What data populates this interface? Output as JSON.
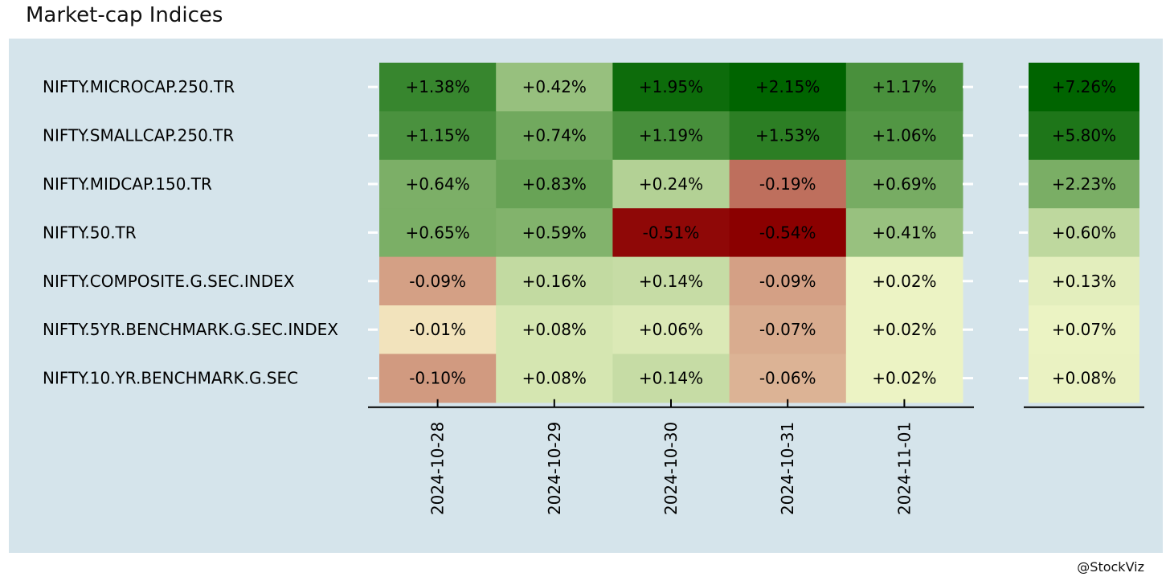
{
  "title": "Market-cap Indices",
  "caption": "@StockViz",
  "chart_data": {
    "type": "heatmap",
    "title": "Market-cap Indices",
    "rows": [
      "NIFTY.MICROCAP.250.TR",
      "NIFTY.SMALLCAP.250.TR",
      "NIFTY.MIDCAP.150.TR",
      "NIFTY.50.TR",
      "NIFTY.COMPOSITE.G.SEC.INDEX",
      "NIFTY.5YR.BENCHMARK.G.SEC.INDEX",
      "NIFTY.10.YR.BENCHMARK.G.SEC"
    ],
    "columns": [
      "2024-10-28",
      "2024-10-29",
      "2024-10-30",
      "2024-10-31",
      "2024-11-01"
    ],
    "values": [
      [
        1.38,
        0.42,
        1.95,
        2.15,
        1.17
      ],
      [
        1.15,
        0.74,
        1.19,
        1.53,
        1.06
      ],
      [
        0.64,
        0.83,
        0.24,
        -0.19,
        0.69
      ],
      [
        0.65,
        0.59,
        -0.51,
        -0.54,
        0.41
      ],
      [
        -0.09,
        0.16,
        0.14,
        -0.09,
        0.02
      ],
      [
        -0.01,
        0.08,
        0.06,
        -0.07,
        0.02
      ],
      [
        -0.1,
        0.08,
        0.14,
        -0.06,
        0.02
      ]
    ],
    "totals": [
      7.26,
      5.8,
      2.23,
      0.6,
      0.13,
      0.07,
      0.08
    ],
    "value_format": "percent with sign, 2 decimals",
    "colors": {
      "strong_negative": "#8b0000",
      "neutral": "#ffffd4",
      "strong_positive": "#006400"
    },
    "legend": "none"
  }
}
